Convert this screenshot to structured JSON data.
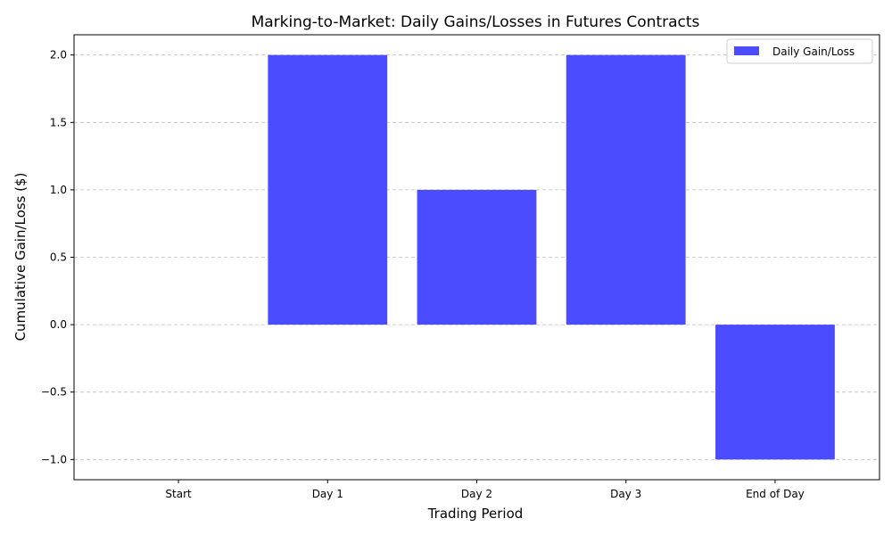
{
  "chart_data": {
    "type": "bar",
    "title": "Marking-to-Market: Daily Gains/Losses in Futures Contracts",
    "xlabel": "Trading Period",
    "ylabel": "Cumulative Gain/Loss ($)",
    "categories": [
      "Start",
      "Day 1",
      "Day 2",
      "Day 3",
      "End of Day"
    ],
    "series": [
      {
        "name": "Daily Gain/Loss",
        "values": [
          0,
          2,
          1,
          2,
          -1
        ],
        "color": "#4b4bff"
      }
    ],
    "ylim": [
      -1.15,
      2.15
    ],
    "yticks": [
      -1.0,
      -0.5,
      0.0,
      0.5,
      1.0,
      1.5,
      2.0
    ],
    "ytick_labels": [
      "−1.0",
      "−0.5",
      "0.0",
      "0.5",
      "1.0",
      "1.5",
      "2.0"
    ],
    "grid": true,
    "legend_position": "top-right"
  }
}
